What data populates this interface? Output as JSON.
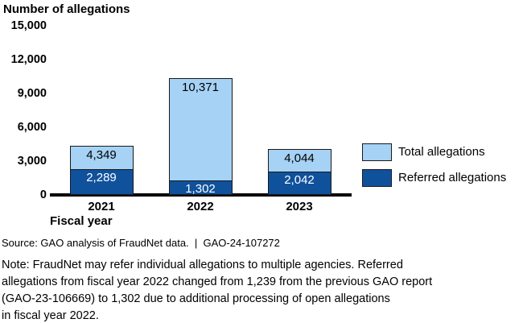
{
  "chart_data": {
    "type": "bar",
    "title": "Number of allegations",
    "xlabel": "Fiscal year",
    "categories": [
      "2021",
      "2022",
      "2023"
    ],
    "series": [
      {
        "name": "Total allegations",
        "values": [
          4349,
          10371,
          4044
        ],
        "color": "#a5d2f5",
        "label_color": "#000000"
      },
      {
        "name": "Referred allegations",
        "values": [
          2289,
          1302,
          2042
        ],
        "color": "#10519c",
        "label_color": "#ffffff"
      }
    ],
    "y_ticks": [
      0,
      3000,
      6000,
      9000,
      12000,
      15000
    ],
    "ylim": [
      0,
      15000
    ],
    "grid": false,
    "legend_position": "right",
    "bar_style": "overlaid (referred segment drawn at base of total bar)"
  },
  "source_line": "Source: GAO analysis of FraudNet data.  |  GAO-24-107272",
  "note_lines": [
    "Note: FraudNet may refer individual allegations to multiple agencies. Referred",
    "allegations from fiscal year 2022 changed from 1,239 from the previous GAO report",
    "(GAO-23-106669) to 1,302 due to additional processing of open allegations",
    "in fiscal year 2022."
  ]
}
